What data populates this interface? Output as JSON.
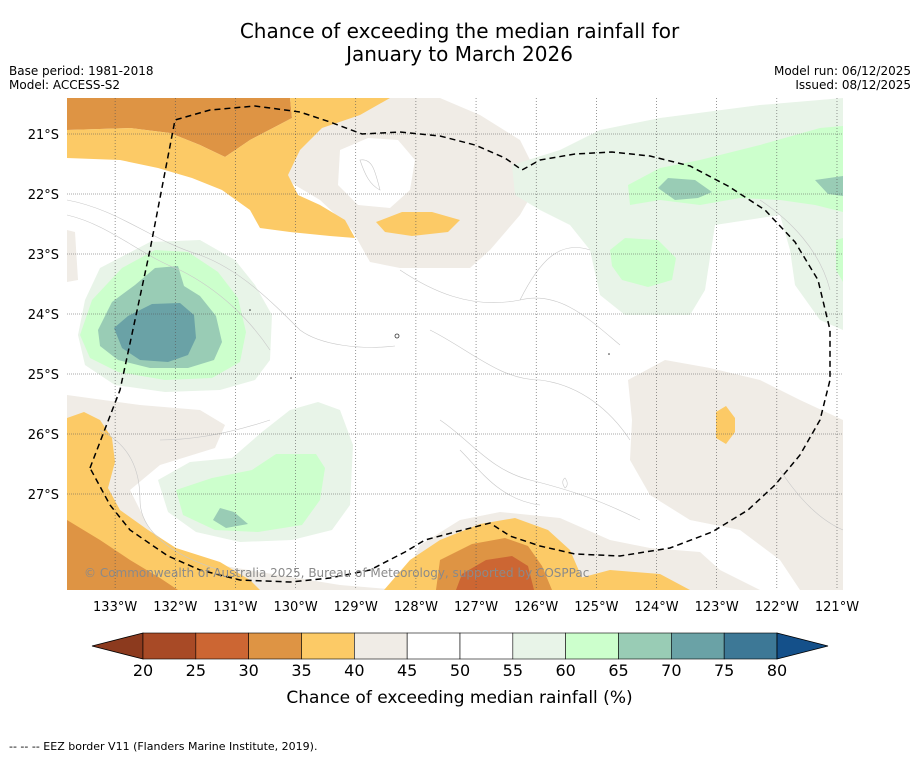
{
  "title": {
    "line1": "Chance of exceeding the median rainfall for",
    "line2": "January to March 2026"
  },
  "header_left": {
    "base_period": "Base period: 1981-2018",
    "model": "Model: ACCESS-S2"
  },
  "header_right": {
    "model_run": "Model run: 06/12/2025",
    "issued": "Issued: 08/12/2025"
  },
  "map": {
    "lon_range": [
      -133.8,
      -120.9
    ],
    "lat_range": [
      -28.6,
      -20.4
    ],
    "lon_ticks": [
      "133°W",
      "132°W",
      "131°W",
      "130°W",
      "129°W",
      "128°W",
      "127°W",
      "126°W",
      "125°W",
      "124°W",
      "123°W",
      "122°W",
      "121°W"
    ],
    "lat_ticks": [
      "21°S",
      "22°S",
      "23°S",
      "24°S",
      "25°S",
      "26°S",
      "27°S"
    ],
    "credit": "© Commonwealth of Australia 2025, Bureau of Meteorology, supported by COSPPac"
  },
  "colorbar": {
    "ticks": [
      "20",
      "25",
      "30",
      "35",
      "40",
      "45",
      "50",
      "55",
      "60",
      "65",
      "70",
      "75",
      "80"
    ],
    "label": "Chance of exceeding median rainfall (%)",
    "colors": {
      "below20": "#8c3a1e",
      "c20_25": "#a84a26",
      "c25_30": "#cc6633",
      "c30_35": "#de9444",
      "c35_40": "#fcca66",
      "c40_45": "#f0ece6",
      "c45_50": "#ffffff",
      "c50_55": "#ffffff",
      "c55_60": "#e8f4e8",
      "c60_65": "#ccffcc",
      "c65_70": "#99ccb5",
      "c70_75": "#6aa2a6",
      "c75_80": "#3d7896",
      "above80": "#14508a"
    }
  },
  "footnote": "--  --  -- EEZ border V11 (Flanders Marine Institute, 2019)."
}
